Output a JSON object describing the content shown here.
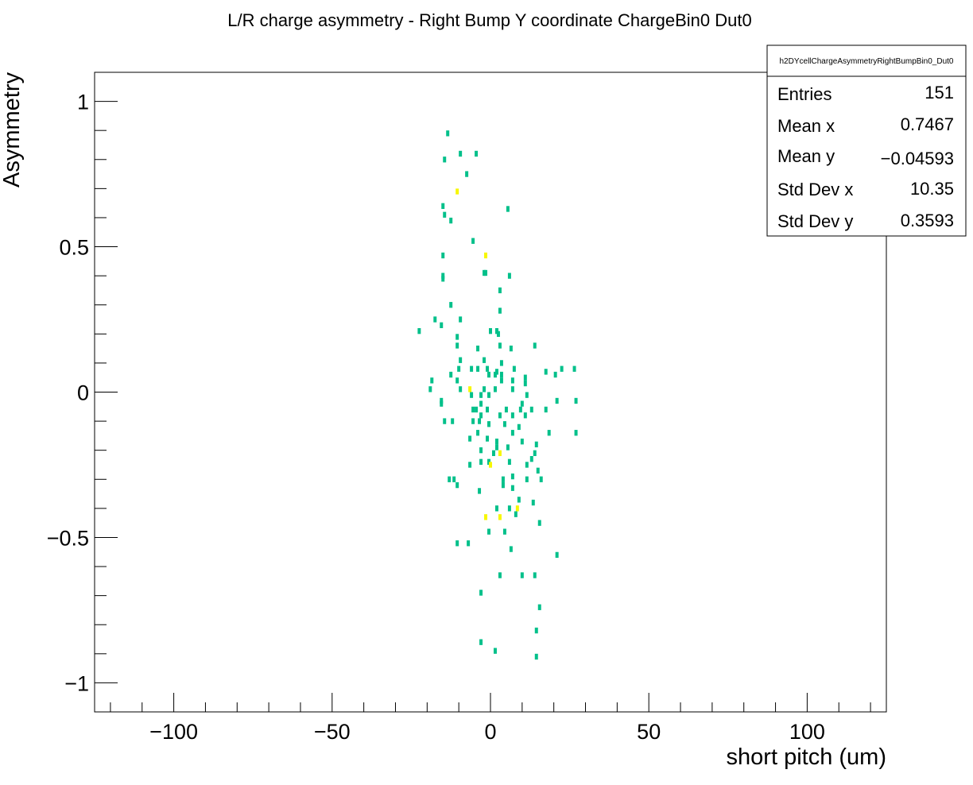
{
  "chart_data": {
    "type": "heatmap",
    "title": "L/R charge asymmetry - Right Bump Y coordinate ChargeBin0 Dut0",
    "xlabel": "short pitch (um)",
    "ylabel": "Asymmetry",
    "xlim": [
      -125,
      125
    ],
    "ylim": [
      -1.1,
      1.1
    ],
    "x_ticks": [
      -100,
      -50,
      0,
      50,
      100
    ],
    "x_tick_labels": [
      "−100",
      "−50",
      "0",
      "50",
      "100"
    ],
    "y_ticks": [
      -1,
      -0.5,
      0,
      0.5,
      1
    ],
    "y_tick_labels": [
      "−1",
      "−0.5",
      "0",
      "0.5",
      "1"
    ],
    "grid": false,
    "colors": {
      "count_1": "#00c08a",
      "count_2": "#f7f700"
    },
    "stats_box": {
      "name": "h2DYcellChargeAsymmetryRightBumpBin0_Dut0",
      "rows": [
        {
          "label": "Entries",
          "value": "151"
        },
        {
          "label": "Mean x",
          "value": "0.7467"
        },
        {
          "label": "Mean y",
          "value": "−0.04593"
        },
        {
          "label": "Std Dev x",
          "value": "10.35"
        },
        {
          "label": "Std Dev y",
          "value": "0.3593"
        }
      ]
    },
    "bins": [
      [
        -13.5,
        0.89,
        1
      ],
      [
        -9.5,
        0.82,
        1
      ],
      [
        -14.5,
        0.8,
        1
      ],
      [
        -4.5,
        0.82,
        1
      ],
      [
        -7.5,
        0.75,
        1
      ],
      [
        -10.5,
        0.69,
        2
      ],
      [
        -15.0,
        0.64,
        1
      ],
      [
        -14.5,
        0.61,
        1
      ],
      [
        -12.5,
        0.59,
        1
      ],
      [
        5.5,
        0.63,
        1
      ],
      [
        -5.5,
        0.52,
        1
      ],
      [
        -1.5,
        0.47,
        2
      ],
      [
        -15.0,
        0.47,
        1
      ],
      [
        -2.0,
        0.41,
        1
      ],
      [
        -1.5,
        0.41,
        1
      ],
      [
        6.0,
        0.4,
        1
      ],
      [
        -15.0,
        0.4,
        1
      ],
      [
        -15.0,
        0.39,
        1
      ],
      [
        3.0,
        0.35,
        1
      ],
      [
        -12.5,
        0.3,
        1
      ],
      [
        3.0,
        0.28,
        1
      ],
      [
        -17.5,
        0.25,
        1
      ],
      [
        -15.5,
        0.23,
        1
      ],
      [
        -9.5,
        0.25,
        1
      ],
      [
        -22.5,
        0.21,
        1
      ],
      [
        0.0,
        0.21,
        1
      ],
      [
        2.0,
        0.21,
        1
      ],
      [
        2.5,
        0.2,
        1
      ],
      [
        -10.5,
        0.19,
        1
      ],
      [
        -10.5,
        0.16,
        1
      ],
      [
        3.0,
        0.16,
        1
      ],
      [
        14.0,
        0.16,
        1
      ],
      [
        -4.0,
        0.15,
        1
      ],
      [
        6.5,
        0.15,
        1
      ],
      [
        -9.5,
        0.11,
        1
      ],
      [
        -2.0,
        0.11,
        1
      ],
      [
        3.5,
        0.1,
        1
      ],
      [
        -10.0,
        0.08,
        1
      ],
      [
        -6.0,
        0.08,
        1
      ],
      [
        -4.0,
        0.08,
        1
      ],
      [
        -1.0,
        0.08,
        1
      ],
      [
        2.0,
        0.07,
        1
      ],
      [
        7.5,
        0.08,
        1
      ],
      [
        17.5,
        0.07,
        1
      ],
      [
        22.5,
        0.08,
        1
      ],
      [
        26.5,
        0.08,
        1
      ],
      [
        -12.5,
        0.06,
        1
      ],
      [
        -0.5,
        0.06,
        1
      ],
      [
        1.5,
        0.06,
        1
      ],
      [
        3.5,
        0.06,
        1
      ],
      [
        11.0,
        0.05,
        1
      ],
      [
        20.5,
        0.06,
        1
      ],
      [
        -18.5,
        0.04,
        1
      ],
      [
        -10.5,
        0.04,
        1
      ],
      [
        3.5,
        0.04,
        1
      ],
      [
        7.0,
        0.04,
        1
      ],
      [
        11.0,
        0.03,
        1
      ],
      [
        -19.0,
        0.01,
        1
      ],
      [
        -9.5,
        0.01,
        1
      ],
      [
        -6.5,
        0.01,
        2
      ],
      [
        -2.0,
        0.01,
        1
      ],
      [
        1.5,
        0.01,
        1
      ],
      [
        7.0,
        0.01,
        1
      ],
      [
        -6.0,
        -0.01,
        1
      ],
      [
        -3.0,
        -0.01,
        1
      ],
      [
        -0.5,
        -0.01,
        1
      ],
      [
        11.5,
        -0.01,
        1
      ],
      [
        -15.5,
        -0.03,
        1
      ],
      [
        -15.5,
        -0.04,
        1
      ],
      [
        -3.0,
        -0.04,
        1
      ],
      [
        10.0,
        -0.04,
        1
      ],
      [
        21.0,
        -0.03,
        1
      ],
      [
        27.0,
        -0.03,
        1
      ],
      [
        -5.5,
        -0.06,
        1
      ],
      [
        -4.5,
        -0.06,
        1
      ],
      [
        -1.0,
        -0.06,
        1
      ],
      [
        5.0,
        -0.06,
        1
      ],
      [
        9.5,
        -0.06,
        1
      ],
      [
        13.0,
        -0.06,
        1
      ],
      [
        17.5,
        -0.06,
        1
      ],
      [
        -3.0,
        -0.08,
        1
      ],
      [
        3.0,
        -0.08,
        1
      ],
      [
        7.0,
        -0.08,
        1
      ],
      [
        11.0,
        -0.08,
        1
      ],
      [
        -14.5,
        -0.1,
        1
      ],
      [
        -12.0,
        -0.1,
        1
      ],
      [
        -5.5,
        -0.1,
        1
      ],
      [
        -3.5,
        -0.1,
        1
      ],
      [
        -0.5,
        -0.11,
        1
      ],
      [
        4.5,
        -0.11,
        1
      ],
      [
        9.0,
        -0.12,
        1
      ],
      [
        -4.0,
        -0.14,
        1
      ],
      [
        7.0,
        -0.14,
        1
      ],
      [
        18.5,
        -0.14,
        1
      ],
      [
        27.0,
        -0.14,
        1
      ],
      [
        -6.5,
        -0.16,
        1
      ],
      [
        -1.0,
        -0.16,
        1
      ],
      [
        2.0,
        -0.17,
        1
      ],
      [
        10.0,
        -0.17,
        1
      ],
      [
        14.5,
        -0.18,
        1
      ],
      [
        2.0,
        -0.19,
        1
      ],
      [
        5.5,
        -0.19,
        1
      ],
      [
        -3.0,
        -0.2,
        1
      ],
      [
        1.0,
        -0.21,
        1
      ],
      [
        3.0,
        -0.21,
        2
      ],
      [
        14.0,
        -0.21,
        1
      ],
      [
        13.0,
        -0.23,
        1
      ],
      [
        -0.5,
        -0.24,
        1
      ],
      [
        -3.0,
        -0.24,
        1
      ],
      [
        0.0,
        -0.25,
        2
      ],
      [
        6.0,
        -0.24,
        1
      ],
      [
        11.5,
        -0.25,
        1
      ],
      [
        -6.5,
        -0.25,
        1
      ],
      [
        15.0,
        -0.27,
        1
      ],
      [
        7.0,
        -0.29,
        1
      ],
      [
        -13.0,
        -0.3,
        1
      ],
      [
        -11.5,
        -0.3,
        1
      ],
      [
        4.0,
        -0.3,
        1
      ],
      [
        11.5,
        -0.3,
        1
      ],
      [
        16.0,
        -0.3,
        1
      ],
      [
        -10.5,
        -0.32,
        1
      ],
      [
        -3.5,
        -0.34,
        1
      ],
      [
        4.0,
        -0.32,
        1
      ],
      [
        7.0,
        -0.33,
        1
      ],
      [
        9.0,
        -0.37,
        1
      ],
      [
        13.5,
        -0.38,
        1
      ],
      [
        2.0,
        -0.4,
        1
      ],
      [
        6.0,
        -0.4,
        1
      ],
      [
        8.5,
        -0.4,
        2
      ],
      [
        -1.5,
        -0.43,
        2
      ],
      [
        3.0,
        -0.43,
        2
      ],
      [
        8.0,
        -0.42,
        1
      ],
      [
        15.5,
        -0.45,
        1
      ],
      [
        -10.5,
        -0.52,
        1
      ],
      [
        -7.0,
        -0.52,
        1
      ],
      [
        -0.5,
        -0.48,
        1
      ],
      [
        4.5,
        -0.48,
        1
      ],
      [
        6.5,
        -0.54,
        1
      ],
      [
        21.0,
        -0.56,
        1
      ],
      [
        3.0,
        -0.63,
        1
      ],
      [
        10.0,
        -0.63,
        1
      ],
      [
        14.0,
        -0.63,
        1
      ],
      [
        -3.0,
        -0.69,
        1
      ],
      [
        15.5,
        -0.74,
        1
      ],
      [
        14.5,
        -0.82,
        1
      ],
      [
        -3.0,
        -0.86,
        1
      ],
      [
        1.5,
        -0.89,
        1
      ],
      [
        14.5,
        -0.91,
        1
      ]
    ]
  }
}
